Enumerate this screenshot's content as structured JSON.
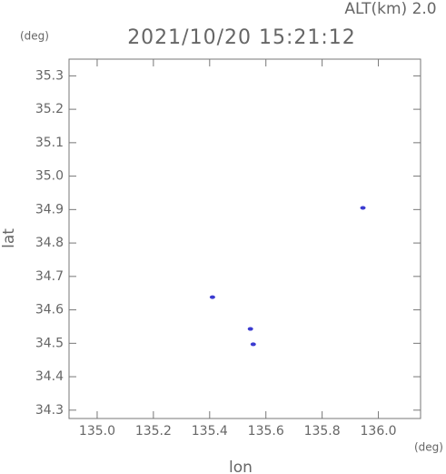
{
  "chart_data": {
    "type": "scatter",
    "title": "2021/10/20 15:21:12",
    "subtitle": "ALT(km) 2.0",
    "x_label": "lon",
    "y_label": "lat",
    "x_unit": "(deg)",
    "y_unit": "(deg)",
    "x": [
      135.41,
      135.545,
      135.555,
      135.945
    ],
    "series": [
      {
        "color": "#3b3bd0",
        "values": [
          34.638,
          34.543,
          34.497,
          34.905
        ]
      }
    ],
    "xlim": [
      134.9,
      136.15
    ],
    "ylim": [
      34.275,
      35.35
    ],
    "xticks": [
      {
        "value": 135.0,
        "label": "135.0"
      },
      {
        "value": 135.2,
        "label": "135.2"
      },
      {
        "value": 135.4,
        "label": "135.4"
      },
      {
        "value": 135.6,
        "label": "135.6"
      },
      {
        "value": 135.8,
        "label": "135.8"
      },
      {
        "value": 136.0,
        "label": "136.0"
      }
    ],
    "yticks": [
      {
        "value": 34.3,
        "label": "34.3"
      },
      34.4,
      34.5,
      34.6,
      34.7,
      34.8,
      34.9,
      {
        "value": 35.0,
        "label": "35.0"
      },
      35.1,
      35.2,
      35.3
    ]
  }
}
